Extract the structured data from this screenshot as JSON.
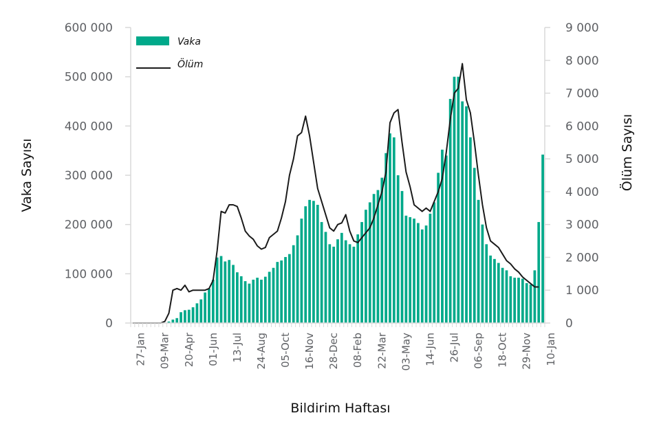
{
  "chart_data": {
    "type": "bar+line",
    "title": "",
    "xlabel": "Bildirim Haftası",
    "ylabel_left": "Vaka Sayısı",
    "ylabel_right": "Ölüm Sayısı",
    "ylim_left": [
      0,
      600000
    ],
    "ylim_right": [
      0,
      9000
    ],
    "yticks_left": [
      "0",
      "100 000",
      "200 000",
      "300 000",
      "400 000",
      "500 000",
      "600 000"
    ],
    "yticks_right": [
      "0",
      "1 000",
      "2 000",
      "3 000",
      "4 000",
      "5 000",
      "6 000",
      "7 000",
      "8 000",
      "9 000"
    ],
    "xtick_labels": [
      "27-Jan",
      "09-Mar",
      "20-Apr",
      "01-Jun",
      "13-Jul",
      "24-Aug",
      "05-Oct",
      "16-Nov",
      "28-Dec",
      "08-Feb",
      "22-Mar",
      "03-May",
      "14-Jun",
      "26-Jul",
      "06-Sep",
      "18-Oct",
      "29-Nov",
      "10-Jan"
    ],
    "xtick_start_index": 2,
    "xtick_step": 6,
    "legend_position": "top-left",
    "colors": {
      "bar": "#00a98a",
      "line": "#1a1a1a",
      "axis": "#d9d9d9"
    },
    "series": [
      {
        "name": "Vaka",
        "type": "bar",
        "axis": "left",
        "values": [
          0,
          0,
          0,
          0,
          0,
          0,
          0,
          0,
          0,
          3000,
          7000,
          10000,
          22000,
          26000,
          27000,
          32000,
          40000,
          48000,
          62000,
          70000,
          88000,
          133000,
          136000,
          125000,
          128000,
          118000,
          103000,
          95000,
          85000,
          80000,
          88000,
          92000,
          88000,
          94000,
          104000,
          112000,
          124000,
          127000,
          134000,
          140000,
          158000,
          178000,
          212000,
          237000,
          250000,
          248000,
          240000,
          205000,
          185000,
          160000,
          155000,
          170000,
          183000,
          168000,
          160000,
          155000,
          180000,
          205000,
          230000,
          245000,
          262000,
          270000,
          295000,
          345000,
          385000,
          377000,
          300000,
          268000,
          218000,
          215000,
          212000,
          203000,
          190000,
          198000,
          222000,
          245000,
          305000,
          352000,
          340000,
          455000,
          500000,
          500000,
          450000,
          440000,
          377000,
          315000,
          250000,
          200000,
          160000,
          137000,
          130000,
          122000,
          112000,
          107000,
          95000,
          92000,
          92000,
          90000,
          81000,
          78000,
          107000,
          205000,
          342000
        ]
      },
      {
        "name": "Ölüm",
        "type": "line",
        "axis": "right",
        "values": [
          0,
          0,
          0,
          0,
          0,
          0,
          0,
          0,
          50,
          300,
          1000,
          1050,
          1000,
          1150,
          950,
          1000,
          1000,
          1000,
          1000,
          1050,
          1300,
          2200,
          3400,
          3350,
          3600,
          3600,
          3550,
          3200,
          2800,
          2650,
          2550,
          2350,
          2250,
          2300,
          2600,
          2700,
          2800,
          3200,
          3700,
          4500,
          5000,
          5700,
          5800,
          6300,
          5700,
          4900,
          4100,
          3700,
          3300,
          2900,
          2800,
          3000,
          3050,
          3300,
          2800,
          2500,
          2450,
          2600,
          2750,
          2900,
          3200,
          3600,
          4000,
          4600,
          6100,
          6400,
          6500,
          5500,
          4600,
          4150,
          3600,
          3500,
          3400,
          3500,
          3400,
          3700,
          4000,
          4400,
          5200,
          6200,
          7000,
          7150,
          7900,
          6800,
          6400,
          5500,
          4500,
          3600,
          2900,
          2500,
          2400,
          2300,
          2100,
          1900,
          1800,
          1650,
          1550,
          1400,
          1300,
          1200,
          1100,
          1100
        ]
      }
    ]
  }
}
